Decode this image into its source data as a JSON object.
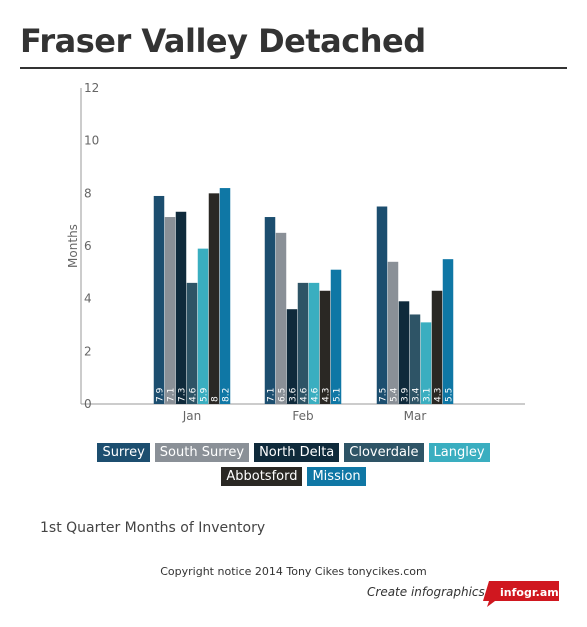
{
  "page": {
    "title": "Fraser Valley Detached",
    "subtitle": "1st Quarter Months of Inventory",
    "copyright": "Copyright notice 2014 Tony Cikes tonycikes.com",
    "create_link": "Create infographics",
    "badge": "infogr.am"
  },
  "chart_data": {
    "type": "bar",
    "title": "",
    "xlabel": "",
    "ylabel": "Months",
    "ylim": [
      0,
      12
    ],
    "yticks": [
      0,
      2,
      4,
      6,
      8,
      10,
      12
    ],
    "grid": false,
    "legend_position": "bottom",
    "categories": [
      "Jan",
      "Feb",
      "Mar"
    ],
    "series": [
      {
        "name": "Surrey",
        "color": "#1c4e6f",
        "values": [
          7.9,
          7.1,
          7.5
        ],
        "labels": [
          "7.9",
          "7.1",
          "7.5"
        ]
      },
      {
        "name": "South Surrey",
        "color": "#8a9097",
        "values": [
          7.1,
          6.5,
          5.4
        ],
        "labels": [
          "7.1",
          "6.5",
          "5.4"
        ]
      },
      {
        "name": "North Delta",
        "color": "#0f2a3b",
        "values": [
          7.3,
          3.6,
          3.9
        ],
        "labels": [
          "7.3",
          "3.6",
          "3.9"
        ]
      },
      {
        "name": "Cloverdale",
        "color": "#2e5466",
        "values": [
          4.6,
          4.6,
          3.4
        ],
        "labels": [
          "4.6",
          "4.6",
          "3.4"
        ]
      },
      {
        "name": "Langley",
        "color": "#3aaec0",
        "values": [
          5.9,
          4.6,
          3.1
        ],
        "labels": [
          "5.9",
          "4.6",
          "3.1"
        ]
      },
      {
        "name": "Abbotsford",
        "color": "#2a2824",
        "values": [
          8.0,
          4.3,
          4.3
        ],
        "labels": [
          "8",
          "4.3",
          "4.3"
        ]
      },
      {
        "name": "Mission",
        "color": "#0f77a5",
        "values": [
          8.2,
          5.1,
          5.5
        ],
        "labels": [
          "8.2",
          "5.1",
          "5.5"
        ]
      }
    ]
  }
}
